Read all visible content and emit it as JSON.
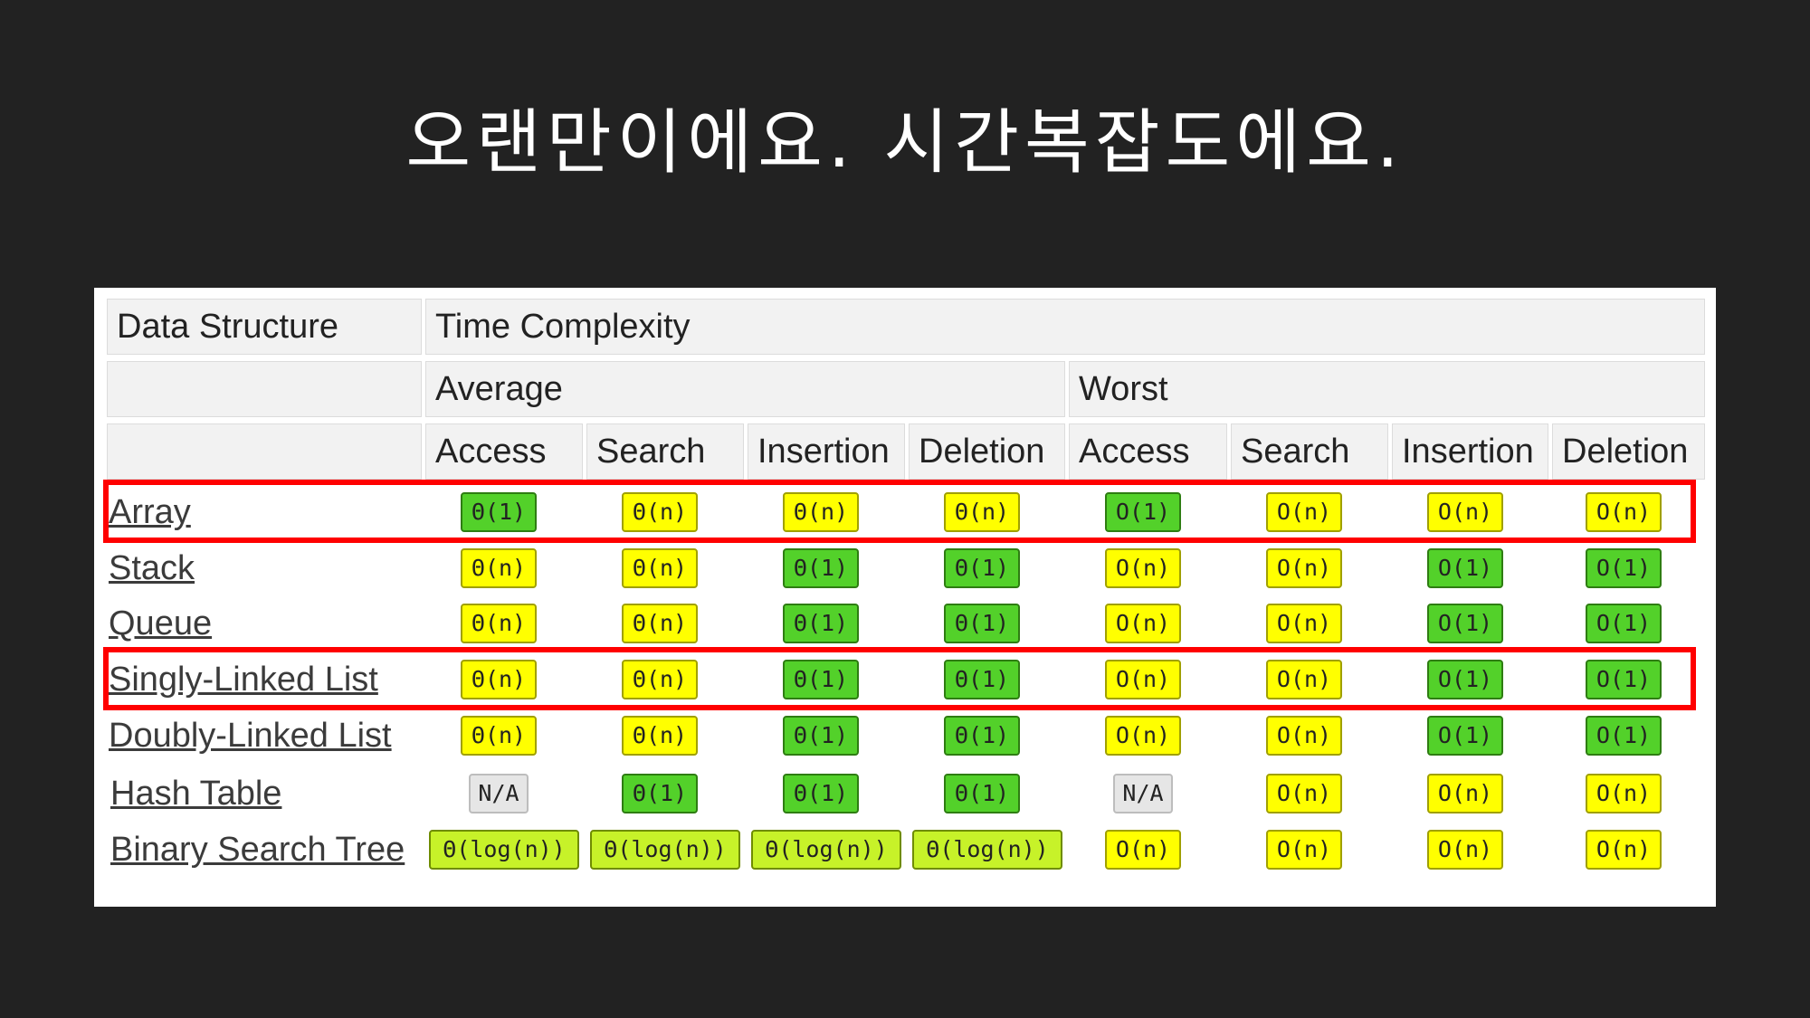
{
  "slide": {
    "title": "오랜만이에요. 시간복잡도에요."
  },
  "table": {
    "header_data_structure": "Data Structure",
    "header_time_complexity": "Time Complexity",
    "group_average": "Average",
    "group_worst": "Worst",
    "columns": [
      "Access",
      "Search",
      "Insertion",
      "Deletion",
      "Access",
      "Search",
      "Insertion",
      "Deletion"
    ],
    "rows": [
      {
        "name": "Array",
        "highlighted": true,
        "cells": [
          [
            "Θ(1)",
            "green"
          ],
          [
            "Θ(n)",
            "yellow"
          ],
          [
            "Θ(n)",
            "yellow"
          ],
          [
            "Θ(n)",
            "yellow"
          ],
          [
            "O(1)",
            "green"
          ],
          [
            "O(n)",
            "yellow"
          ],
          [
            "O(n)",
            "yellow"
          ],
          [
            "O(n)",
            "yellow"
          ]
        ]
      },
      {
        "name": "Stack",
        "highlighted": false,
        "cells": [
          [
            "Θ(n)",
            "yellow"
          ],
          [
            "Θ(n)",
            "yellow"
          ],
          [
            "Θ(1)",
            "green"
          ],
          [
            "Θ(1)",
            "green"
          ],
          [
            "O(n)",
            "yellow"
          ],
          [
            "O(n)",
            "yellow"
          ],
          [
            "O(1)",
            "green"
          ],
          [
            "O(1)",
            "green"
          ]
        ]
      },
      {
        "name": "Queue",
        "highlighted": false,
        "cells": [
          [
            "Θ(n)",
            "yellow"
          ],
          [
            "Θ(n)",
            "yellow"
          ],
          [
            "Θ(1)",
            "green"
          ],
          [
            "Θ(1)",
            "green"
          ],
          [
            "O(n)",
            "yellow"
          ],
          [
            "O(n)",
            "yellow"
          ],
          [
            "O(1)",
            "green"
          ],
          [
            "O(1)",
            "green"
          ]
        ]
      },
      {
        "name": "Singly-Linked List",
        "highlighted": true,
        "cells": [
          [
            "Θ(n)",
            "yellow"
          ],
          [
            "Θ(n)",
            "yellow"
          ],
          [
            "Θ(1)",
            "green"
          ],
          [
            "Θ(1)",
            "green"
          ],
          [
            "O(n)",
            "yellow"
          ],
          [
            "O(n)",
            "yellow"
          ],
          [
            "O(1)",
            "green"
          ],
          [
            "O(1)",
            "green"
          ]
        ]
      },
      {
        "name": "Doubly-Linked List",
        "highlighted": false,
        "cells": [
          [
            "Θ(n)",
            "yellow"
          ],
          [
            "Θ(n)",
            "yellow"
          ],
          [
            "Θ(1)",
            "green"
          ],
          [
            "Θ(1)",
            "green"
          ],
          [
            "O(n)",
            "yellow"
          ],
          [
            "O(n)",
            "yellow"
          ],
          [
            "O(1)",
            "green"
          ],
          [
            "O(1)",
            "green"
          ]
        ]
      },
      {
        "name": "Hash Table",
        "highlighted": false,
        "cells": [
          [
            "N/A",
            "gray"
          ],
          [
            "Θ(1)",
            "green"
          ],
          [
            "Θ(1)",
            "green"
          ],
          [
            "Θ(1)",
            "green"
          ],
          [
            "N/A",
            "gray"
          ],
          [
            "O(n)",
            "yellow"
          ],
          [
            "O(n)",
            "yellow"
          ],
          [
            "O(n)",
            "yellow"
          ]
        ]
      },
      {
        "name": "Binary Search Tree",
        "highlighted": false,
        "cells": [
          [
            "Θ(log(n))",
            "lime"
          ],
          [
            "Θ(log(n))",
            "lime"
          ],
          [
            "Θ(log(n))",
            "lime"
          ],
          [
            "Θ(log(n))",
            "lime"
          ],
          [
            "O(n)",
            "yellow"
          ],
          [
            "O(n)",
            "yellow"
          ],
          [
            "O(n)",
            "yellow"
          ],
          [
            "O(n)",
            "yellow"
          ]
        ]
      }
    ],
    "colors": {
      "yellow": "#ffff00",
      "green": "#53d12a",
      "lime": "#c7f229",
      "gray": "#e6e6e6",
      "highlight": "#ff0000"
    }
  }
}
